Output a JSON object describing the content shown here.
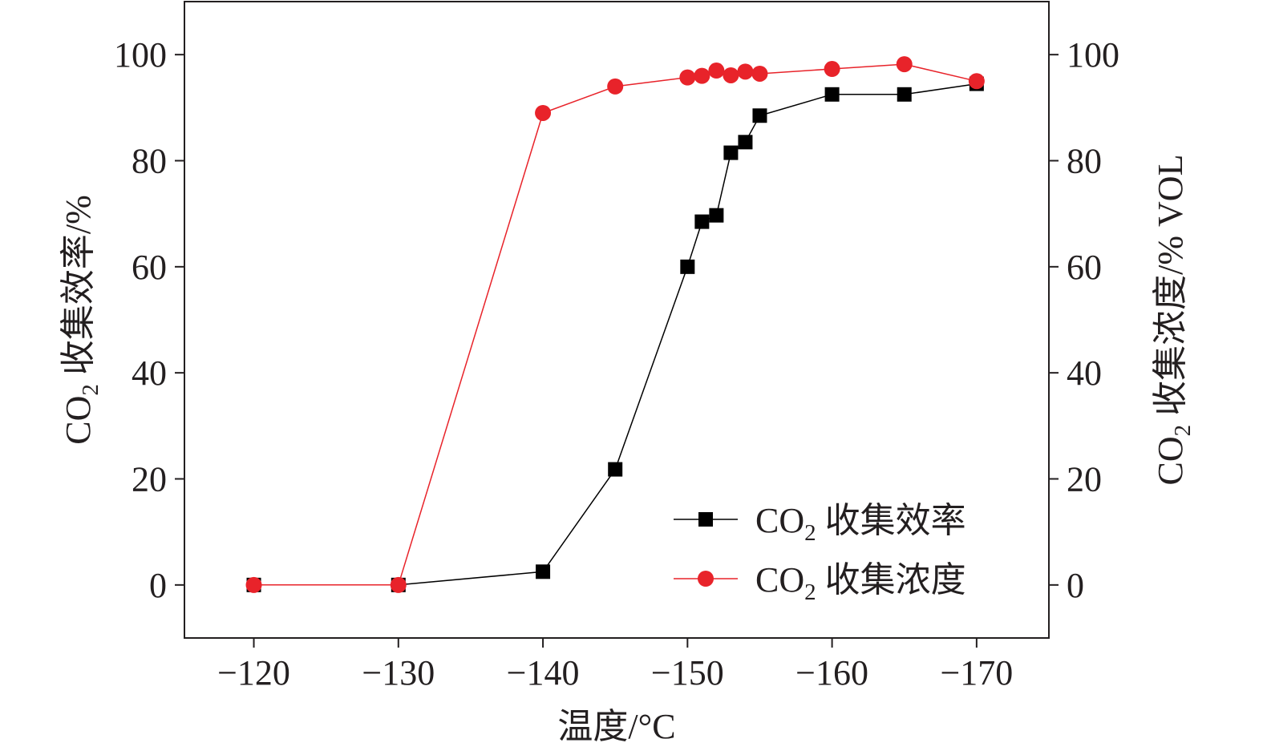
{
  "chart_data": {
    "type": "line",
    "x": [
      -120,
      -130,
      -140,
      -145,
      -150,
      -151,
      -152,
      -153,
      -154,
      -155,
      -160,
      -165,
      -170
    ],
    "xlabel": "温度/°C",
    "xlim": [
      -115.2,
      -175
    ],
    "xticks": [
      -120,
      -130,
      -140,
      -150,
      -160,
      -170
    ],
    "xtick_labels": [
      "−120",
      "−130",
      "−140",
      "−150",
      "−160",
      "−170"
    ],
    "ylim": [
      -10,
      110
    ],
    "yticks": [
      0,
      20,
      40,
      60,
      80,
      100
    ],
    "ytick_labels": [
      "0",
      "20",
      "40",
      "60",
      "80",
      "100"
    ],
    "ylabel": {
      "prefix": "CO",
      "sub": "2",
      "rest": " 收集效率/%"
    },
    "y2lim": [
      -10,
      110
    ],
    "y2ticks": [
      0,
      20,
      40,
      60,
      80,
      100
    ],
    "y2tick_labels": [
      "0",
      "20",
      "40",
      "60",
      "80",
      "100"
    ],
    "y2label": {
      "prefix": "CO",
      "sub": "2",
      "rest": " 收集浓度/% VOL"
    },
    "legend_position": "bottom-right",
    "grid": false,
    "series": [
      {
        "name": {
          "prefix": "CO",
          "sub": "2",
          "rest": " 收集效率"
        },
        "axis": "left",
        "marker": "square",
        "color": "#000000",
        "values": [
          0,
          0,
          2.5,
          21.8,
          60,
          68.5,
          69.7,
          81.5,
          83.5,
          88.5,
          92.5,
          92.5,
          94.5
        ]
      },
      {
        "name": {
          "prefix": "CO",
          "sub": "2",
          "rest": " 收集浓度"
        },
        "axis": "right",
        "marker": "circle",
        "color": "#e8232a",
        "values": [
          0,
          0,
          89,
          94,
          95.7,
          96,
          97,
          96.1,
          96.8,
          96.4,
          97.3,
          98.2,
          95
        ]
      }
    ]
  }
}
